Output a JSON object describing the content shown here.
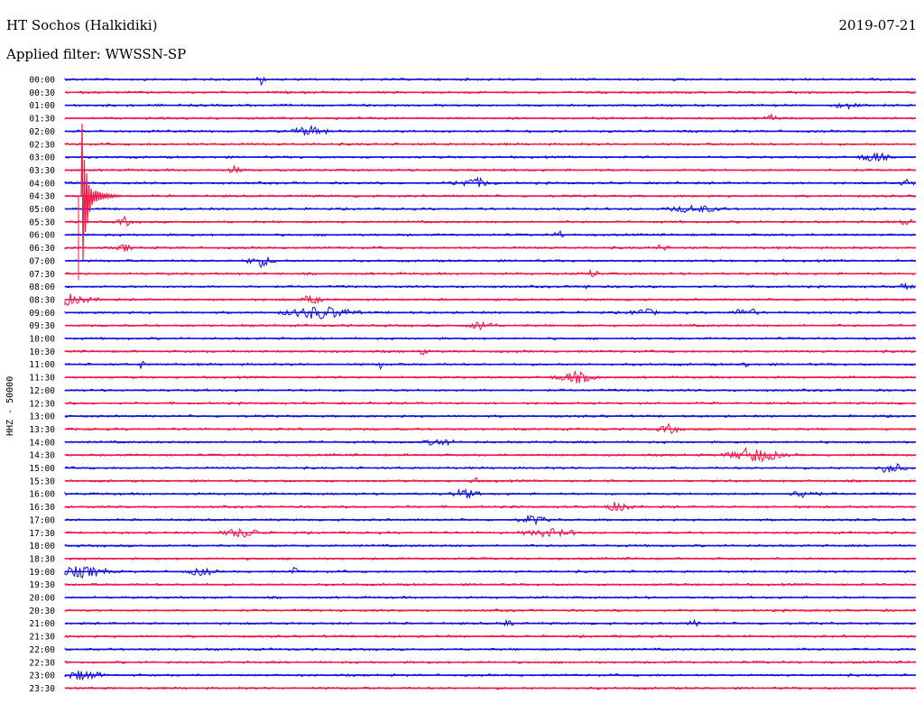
{
  "header": {
    "station": "HT Sochos (Halkidiki)",
    "date": "2019-07-21",
    "filter": "Applied filter: WWSSN-SP"
  },
  "axis_label": "HHZ - 50000",
  "colors": {
    "trace_a": "#1010e0",
    "trace_b": "#f01848",
    "background": "#ffffff",
    "text": "#000000"
  },
  "rows": [
    {
      "time": "00:00",
      "color": "trace_a"
    },
    {
      "time": "00:30",
      "color": "trace_b"
    },
    {
      "time": "01:00",
      "color": "trace_a"
    },
    {
      "time": "01:30",
      "color": "trace_b"
    },
    {
      "time": "02:00",
      "color": "trace_a"
    },
    {
      "time": "02:30",
      "color": "trace_b"
    },
    {
      "time": "03:00",
      "color": "trace_a"
    },
    {
      "time": "03:30",
      "color": "trace_b"
    },
    {
      "time": "04:00",
      "color": "trace_a"
    },
    {
      "time": "04:30",
      "color": "trace_b"
    },
    {
      "time": "05:00",
      "color": "trace_a"
    },
    {
      "time": "05:30",
      "color": "trace_b"
    },
    {
      "time": "06:00",
      "color": "trace_a"
    },
    {
      "time": "06:30",
      "color": "trace_b"
    },
    {
      "time": "07:00",
      "color": "trace_a"
    },
    {
      "time": "07:30",
      "color": "trace_b"
    },
    {
      "time": "08:00",
      "color": "trace_a"
    },
    {
      "time": "08:30",
      "color": "trace_b"
    },
    {
      "time": "09:00",
      "color": "trace_a"
    },
    {
      "time": "09:30",
      "color": "trace_b"
    },
    {
      "time": "10:00",
      "color": "trace_a"
    },
    {
      "time": "10:30",
      "color": "trace_b"
    },
    {
      "time": "11:00",
      "color": "trace_a"
    },
    {
      "time": "11:30",
      "color": "trace_b"
    },
    {
      "time": "12:00",
      "color": "trace_a"
    },
    {
      "time": "12:30",
      "color": "trace_b"
    },
    {
      "time": "13:00",
      "color": "trace_a"
    },
    {
      "time": "13:30",
      "color": "trace_b"
    },
    {
      "time": "14:00",
      "color": "trace_a"
    },
    {
      "time": "14:30",
      "color": "trace_b"
    },
    {
      "time": "15:00",
      "color": "trace_a"
    },
    {
      "time": "15:30",
      "color": "trace_b"
    },
    {
      "time": "16:00",
      "color": "trace_a"
    },
    {
      "time": "16:30",
      "color": "trace_b"
    },
    {
      "time": "17:00",
      "color": "trace_a"
    },
    {
      "time": "17:30",
      "color": "trace_b"
    },
    {
      "time": "18:00",
      "color": "trace_a"
    },
    {
      "time": "18:30",
      "color": "trace_b"
    },
    {
      "time": "19:00",
      "color": "trace_a"
    },
    {
      "time": "19:30",
      "color": "trace_b"
    },
    {
      "time": "20:00",
      "color": "trace_a"
    },
    {
      "time": "20:30",
      "color": "trace_b"
    },
    {
      "time": "21:00",
      "color": "trace_a"
    },
    {
      "time": "21:30",
      "color": "trace_b"
    },
    {
      "time": "22:00",
      "color": "trace_a"
    },
    {
      "time": "22:30",
      "color": "trace_b"
    },
    {
      "time": "23:00",
      "color": "trace_a"
    },
    {
      "time": "23:30",
      "color": "trace_b"
    }
  ]
}
